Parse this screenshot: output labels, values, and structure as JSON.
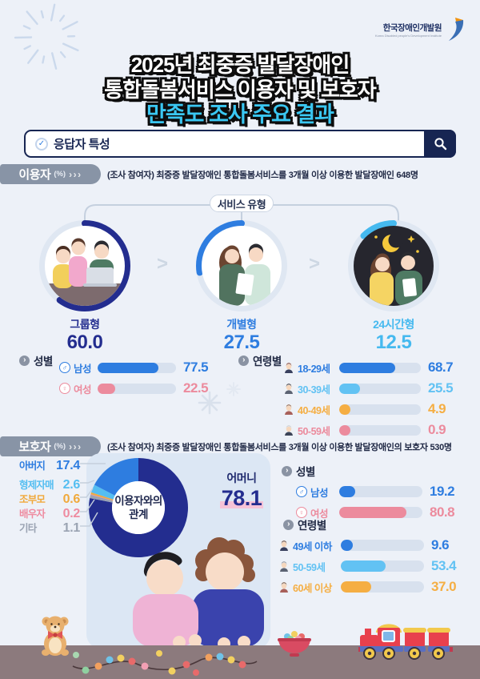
{
  "logo": {
    "title": "한국장애인개발원",
    "subtitle": "Korea Disabled people's Development Institute"
  },
  "title": {
    "line1": "2025년 최중증 발달장애인",
    "line2": "통합돌봄서비스 이용자 및 보호자",
    "line3": "만족도 조사 주요 결과"
  },
  "search": {
    "label": "응답자 특성"
  },
  "users_section": {
    "header": "이용자",
    "unit": "(%)",
    "arrows": "›››",
    "description": "(조사 참여자) 최중증 발달장애인 통합돌봄서비스를  3개월 이상 이용한 발달장애인 648명",
    "service_type_label": "서비스 유형",
    "service_types": [
      {
        "label": "그룹형",
        "value": "60.0",
        "pct": 60.0,
        "color": "#232d8f"
      },
      {
        "label": "개별형",
        "value": "27.5",
        "pct": 27.5,
        "color": "#2e7de0"
      },
      {
        "label": "24시간형",
        "value": "12.5",
        "pct": 12.5,
        "color": "#45b9ef"
      }
    ],
    "gender": {
      "label": "성별",
      "rows": [
        {
          "label": "남성",
          "symbol": "♂",
          "value": "77.5",
          "pct": 77.5,
          "color": "#2e7de0"
        },
        {
          "label": "여성",
          "symbol": "♀",
          "value": "22.5",
          "pct": 22.5,
          "color": "#ec8b9d"
        }
      ]
    },
    "age": {
      "label": "연령별",
      "rows": [
        {
          "label": "18-29세",
          "value": "68.7",
          "pct": 68.7,
          "color": "#2e7de0"
        },
        {
          "label": "30-39세",
          "value": "25.5",
          "pct": 25.5,
          "color": "#62c2f3"
        },
        {
          "label": "40-49세",
          "value": "4.9",
          "pct": 4.9,
          "color": "#f5ae43"
        },
        {
          "label": "50-59세",
          "value": "0.9",
          "pct": 0.9,
          "color": "#ec8b9d"
        }
      ]
    }
  },
  "guardians_section": {
    "header": "보호자",
    "unit": "(%)",
    "arrows": "›››",
    "description": "(조사 참여자) 최중증 발달장애인 통합돌봄서비스를  3개월 이상 이용한 발달장애인의 보호자 530명",
    "relation": {
      "center_label_line1": "이용자와의",
      "center_label_line2": "관계",
      "main": {
        "label": "어머니",
        "value": "78.1",
        "pct": 78.1,
        "color": "#232d8f"
      },
      "others": [
        {
          "label": "아버지",
          "value": "17.4",
          "pct": 17.4,
          "color": "#2e7de0"
        },
        {
          "label": "형제자매",
          "value": "2.6",
          "pct": 2.6,
          "color": "#55bef1"
        },
        {
          "label": "조부모",
          "value": "0.6",
          "pct": 0.6,
          "color": "#f0a93c"
        },
        {
          "label": "배우자",
          "value": "0.2",
          "pct": 0.2,
          "color": "#ee8ba0"
        },
        {
          "label": "기타",
          "value": "1.1",
          "pct": 1.1,
          "color": "#9aa3b2"
        }
      ]
    },
    "gender": {
      "label": "성별",
      "rows": [
        {
          "label": "남성",
          "symbol": "♂",
          "value": "19.2",
          "pct": 19.2,
          "color": "#2e7de0"
        },
        {
          "label": "여성",
          "symbol": "♀",
          "value": "80.8",
          "pct": 80.8,
          "color": "#ec8b9d"
        }
      ]
    },
    "age": {
      "label": "연령별",
      "rows": [
        {
          "label": "49세 이하",
          "value": "9.6",
          "pct": 9.6,
          "color": "#2e7de0"
        },
        {
          "label": "50-59세",
          "value": "53.4",
          "pct": 53.4,
          "color": "#62c2f3"
        },
        {
          "label": "60세 이상",
          "value": "37.0",
          "pct": 37.0,
          "color": "#f5ae43"
        }
      ]
    }
  },
  "chart_data": [
    {
      "type": "pie",
      "title": "서비스 유형",
      "categories": [
        "그룹형",
        "개별형",
        "24시간형"
      ],
      "values": [
        60.0,
        27.5,
        12.5
      ],
      "unit": "%"
    },
    {
      "type": "bar",
      "title": "이용자 성별",
      "categories": [
        "남성",
        "여성"
      ],
      "values": [
        77.5,
        22.5
      ],
      "unit": "%",
      "xlim": [
        0,
        100
      ]
    },
    {
      "type": "bar",
      "title": "이용자 연령별",
      "categories": [
        "18-29세",
        "30-39세",
        "40-49세",
        "50-59세"
      ],
      "values": [
        68.7,
        25.5,
        4.9,
        0.9
      ],
      "unit": "%",
      "xlim": [
        0,
        100
      ]
    },
    {
      "type": "pie",
      "title": "이용자와의 관계",
      "categories": [
        "어머니",
        "아버지",
        "형제자매",
        "조부모",
        "배우자",
        "기타"
      ],
      "values": [
        78.1,
        17.4,
        2.6,
        0.6,
        0.2,
        1.1
      ],
      "unit": "%"
    },
    {
      "type": "bar",
      "title": "보호자 성별",
      "categories": [
        "남성",
        "여성"
      ],
      "values": [
        19.2,
        80.8
      ],
      "unit": "%",
      "xlim": [
        0,
        100
      ]
    },
    {
      "type": "bar",
      "title": "보호자 연령별",
      "categories": [
        "49세 이하",
        "50-59세",
        "60세 이상"
      ],
      "values": [
        9.6,
        53.4,
        37.0
      ],
      "unit": "%",
      "xlim": [
        0,
        100
      ]
    }
  ]
}
